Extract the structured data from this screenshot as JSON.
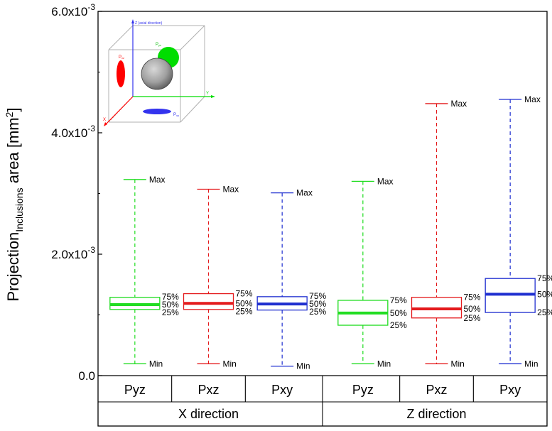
{
  "chart_data": {
    "type": "boxplot",
    "y_axis": {
      "label_main": "Projection",
      "label_sub": "Inclusions",
      "label_rest": " area [mm",
      "label_sup": "2",
      "label_close": "]",
      "ylim": [
        0,
        0.006
      ],
      "ticks": [
        {
          "value": 0.0,
          "label": "0.0"
        },
        {
          "value": 0.002,
          "label": "2.0x10",
          "exp": "-3"
        },
        {
          "value": 0.004,
          "label": "4.0x10",
          "exp": "-3"
        },
        {
          "value": 0.006,
          "label": "6.0x10",
          "exp": "-3"
        }
      ]
    },
    "groups": [
      {
        "label": "X direction"
      },
      {
        "label": "Z direction"
      }
    ],
    "boxes": [
      {
        "group": 0,
        "name": "Pyz",
        "color": "#22dd22",
        "min": 0.000195,
        "q1": 0.00109,
        "median": 0.00117,
        "q3": 0.00129,
        "max": 0.00323
      },
      {
        "group": 0,
        "name": "Pxz",
        "color": "#e41a1c",
        "min": 0.000195,
        "q1": 0.00109,
        "median": 0.00119,
        "q3": 0.00135,
        "max": 0.00307
      },
      {
        "group": 0,
        "name": "Pxy",
        "color": "#1f2fd0",
        "min": 0.000155,
        "q1": 0.00108,
        "median": 0.00118,
        "q3": 0.0013,
        "max": 0.00301
      },
      {
        "group": 1,
        "name": "Pyz",
        "color": "#22dd22",
        "min": 0.000195,
        "q1": 0.00083,
        "median": 0.00103,
        "q3": 0.00124,
        "max": 0.0032
      },
      {
        "group": 1,
        "name": "Pxz",
        "color": "#e41a1c",
        "min": 0.000195,
        "q1": 0.00095,
        "median": 0.0011,
        "q3": 0.00129,
        "max": 0.00448
      },
      {
        "group": 1,
        "name": "Pxy",
        "color": "#1f2fd0",
        "min": 0.000195,
        "q1": 0.00104,
        "median": 0.00134,
        "q3": 0.0016,
        "max": 0.00455
      }
    ],
    "labels": {
      "max": "Max",
      "min": "Min",
      "q3": "75%",
      "median": "50%",
      "q1": "25%"
    },
    "inset": {
      "axis_z_label": "Z (axial direction)",
      "axis_y_label": "Y",
      "axis_x_label": "X",
      "pxz_label": "P",
      "pxz_sub": "xz",
      "pyz_label": "P",
      "pyz_sub": "yz",
      "pxy_label": "P",
      "pxy_sub": "xy",
      "colors": {
        "red": "#ff0000",
        "green": "#00dd00",
        "blue": "#3333ee",
        "sphere": "#a8a8a8"
      }
    }
  }
}
